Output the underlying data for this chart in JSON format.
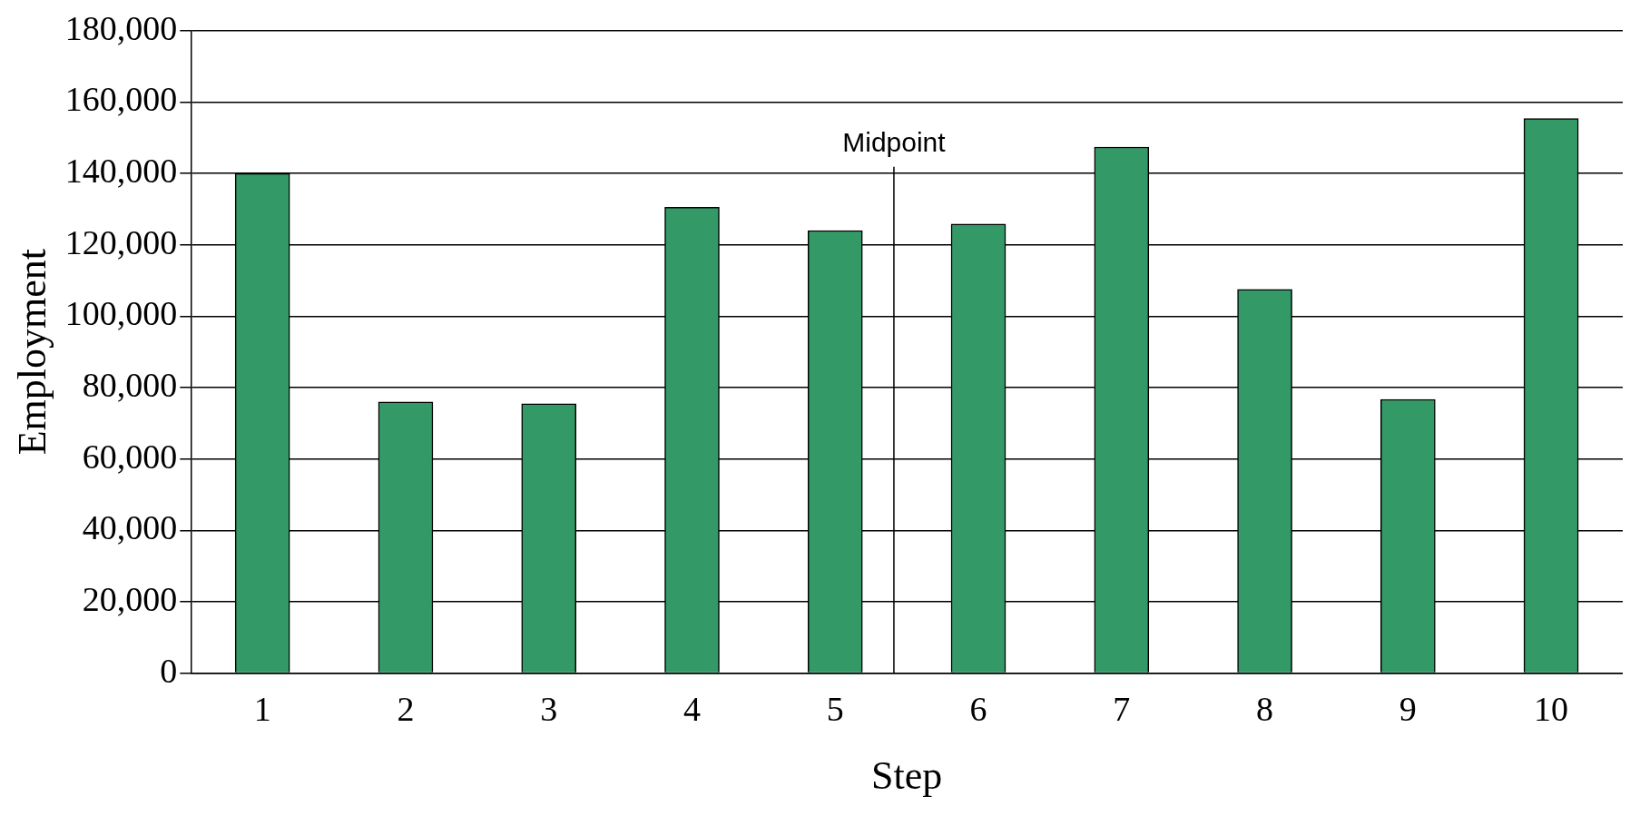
{
  "chart_data": {
    "type": "bar",
    "xlabel": "Step",
    "ylabel": "Employment",
    "x": [
      1,
      2,
      3,
      4,
      5,
      6,
      7,
      8,
      9,
      10
    ],
    "values": [
      140000,
      76000,
      75500,
      130500,
      124000,
      125800,
      147400,
      107500,
      76700,
      155400
    ],
    "color": "#339966",
    "xlim": [
      0.5,
      10.5
    ],
    "xticks": [
      1,
      2,
      3,
      4,
      5,
      6,
      7,
      8,
      9,
      10
    ],
    "ylim": [
      0,
      180000
    ],
    "yticks": [
      0,
      {
        "value": 20000,
        "label": "20,000"
      },
      {
        "value": 40000,
        "label": "40,000"
      },
      {
        "value": 60000,
        "label": "60,000"
      },
      {
        "value": 80000,
        "label": "80,000"
      },
      {
        "value": 100000,
        "label": "100,000"
      },
      {
        "value": 120000,
        "label": "120,000"
      },
      {
        "value": 140000,
        "label": "140,000"
      },
      {
        "value": 160000,
        "label": "160,000"
      },
      {
        "value": 180000,
        "label": "180,000"
      }
    ],
    "grid": "y",
    "legend": false,
    "ref_lines": [
      {
        "axis": "x",
        "value": 5.41,
        "label": "Midpoint",
        "color": "#000000"
      }
    ]
  }
}
